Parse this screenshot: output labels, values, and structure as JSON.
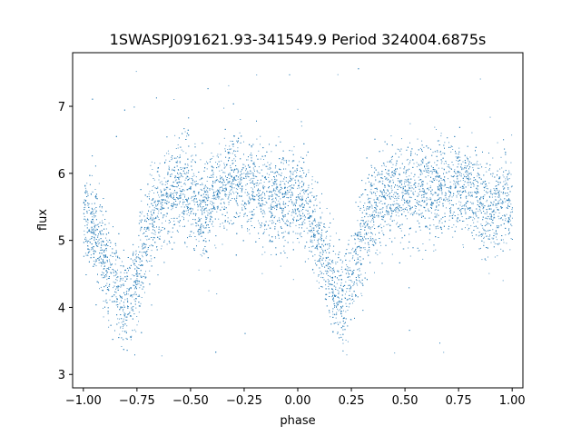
{
  "chart_data": {
    "type": "scatter",
    "title": "1SWASPJ091621.93-341549.9 Period 324004.6875s",
    "xlabel": "phase",
    "ylabel": "flux",
    "xlim": [
      -1.05,
      1.05
    ],
    "ylim": [
      2.8,
      7.8
    ],
    "xticks": [
      -1.0,
      -0.75,
      -0.5,
      -0.25,
      0.0,
      0.25,
      0.5,
      0.75,
      1.0
    ],
    "xtick_labels": [
      "−1.00",
      "−0.75",
      "−0.50",
      "−0.25",
      "0.00",
      "0.25",
      "0.50",
      "0.75",
      "1.00"
    ],
    "yticks": [
      3,
      4,
      5,
      6,
      7
    ],
    "ytick_labels": [
      "3",
      "4",
      "5",
      "6",
      "7"
    ],
    "grid": false,
    "legend": "none",
    "point_color": "#1f77b4",
    "x_range_of_points": [
      -1.0,
      1.0
    ],
    "baseline_flux": 5.55,
    "scatter_sigma": 0.35,
    "band_phases": [
      -0.97,
      -0.9,
      -0.65,
      -0.56,
      -0.45,
      -0.33,
      -0.22,
      -0.12,
      0.03,
      0.1,
      0.35,
      0.44,
      0.55,
      0.67,
      0.78,
      0.88,
      0.98
    ],
    "band_flux": [
      5.3,
      4.9,
      5.6,
      5.8,
      5.5,
      5.9,
      5.8,
      5.6,
      5.6,
      5.2,
      5.5,
      5.7,
      5.7,
      5.8,
      5.8,
      5.5,
      5.6
    ],
    "dips": [
      {
        "phase": -0.8,
        "min_flux": 4.1,
        "width": 0.06
      },
      {
        "phase": 0.2,
        "min_flux": 4.1,
        "width": 0.06
      }
    ],
    "n_points_approx": 9000,
    "outlier_range": [
      3.0,
      7.6
    ]
  }
}
